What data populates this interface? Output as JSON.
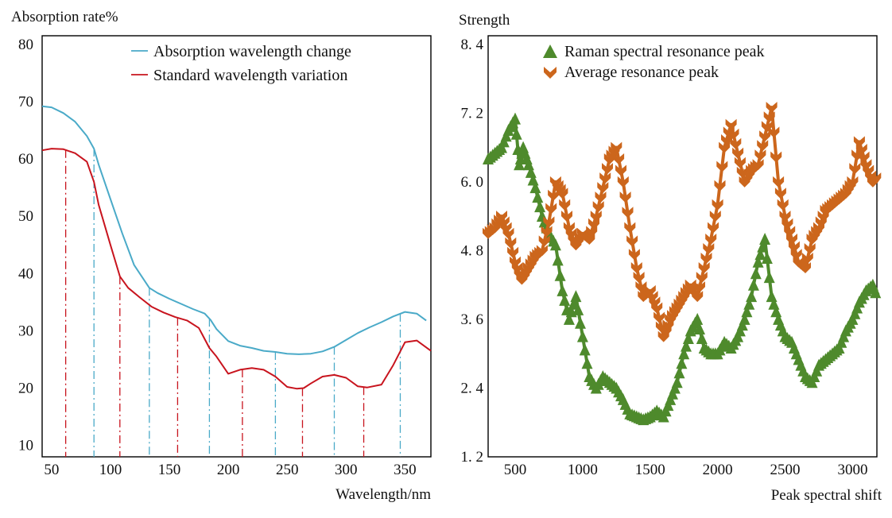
{
  "chart_data": [
    {
      "type": "line",
      "ylabel": "Absorption rate%",
      "xlabel": "Wavelength/nm",
      "xlim": [
        42,
        372
      ],
      "ylim": [
        8,
        81.5
      ],
      "xticks": [
        50,
        100,
        150,
        200,
        250,
        300,
        350
      ],
      "yticks": [
        10,
        20,
        30,
        40,
        50,
        60,
        70,
        80
      ],
      "grid": false,
      "legend_position": "top-right",
      "colors": {
        "absorption": "#4aaac8",
        "standard": "#c8141e",
        "frame": "#000000"
      },
      "series": [
        {
          "name": "Absorption wavelength change",
          "x": [
            42,
            50,
            60,
            70,
            80,
            86,
            90,
            100,
            110,
            120,
            133,
            140,
            150,
            160,
            170,
            180,
            185,
            190,
            200,
            210,
            220,
            230,
            240,
            250,
            260,
            270,
            280,
            290,
            300,
            310,
            320,
            330,
            340,
            350,
            360,
            368
          ],
          "y": [
            69.2,
            69.0,
            68.0,
            66.5,
            64.0,
            61.8,
            59.0,
            53.0,
            47.0,
            41.5,
            37.5,
            36.6,
            35.6,
            34.7,
            33.8,
            33.0,
            31.9,
            30.3,
            28.2,
            27.4,
            27.0,
            26.5,
            26.3,
            26.0,
            25.9,
            26.0,
            26.4,
            27.2,
            28.4,
            29.6,
            30.6,
            31.5,
            32.5,
            33.3,
            33.0,
            31.8
          ]
        },
        {
          "name": "Standard wavelength variation",
          "x": [
            42,
            50,
            60,
            70,
            80,
            86,
            90,
            100,
            108,
            115,
            125,
            135,
            145,
            155,
            165,
            175,
            184,
            190,
            200,
            210,
            220,
            230,
            240,
            250,
            258,
            264,
            270,
            280,
            290,
            300,
            310,
            318,
            330,
            340,
            350,
            360,
            372
          ],
          "y": [
            61.5,
            61.8,
            61.7,
            61.0,
            59.5,
            56.0,
            52.0,
            45.0,
            39.5,
            37.5,
            35.8,
            34.2,
            33.2,
            32.4,
            31.8,
            30.5,
            27.0,
            25.5,
            22.5,
            23.2,
            23.5,
            23.2,
            22.0,
            20.2,
            19.9,
            20.0,
            20.8,
            22.0,
            22.3,
            21.8,
            20.3,
            20.1,
            20.6,
            24.0,
            28.0,
            28.3,
            26.5
          ]
        }
      ],
      "dropline_x_blue": [
        86,
        133,
        184,
        240,
        290,
        346
      ],
      "dropline_x_red": [
        62,
        108,
        157,
        212,
        263,
        315
      ]
    },
    {
      "type": "line",
      "ylabel": "Strength",
      "xlabel": "Peak spectral shift",
      "xlim": [
        300,
        3180
      ],
      "ylim": [
        1.2,
        8.55
      ],
      "xticks": [
        500,
        1000,
        1500,
        2000,
        2500,
        3000
      ],
      "ytick_labels": [
        "1. 2",
        "2. 4",
        "3. 6",
        "4. 8",
        "6. 0",
        "7. 2",
        "8. 4"
      ],
      "ytick_values": [
        1.2,
        2.4,
        3.6,
        4.8,
        6.0,
        7.2,
        8.4
      ],
      "grid": false,
      "legend_position": "top-center",
      "colors": {
        "raman": "#4e8a2c",
        "average": "#cc661c",
        "frame": "#000000"
      },
      "series": [
        {
          "name": "Raman spectral resonance peak",
          "marker": "triangle",
          "x": [
            300,
            350,
            400,
            450,
            500,
            530,
            560,
            600,
            650,
            700,
            750,
            800,
            850,
            900,
            950,
            1000,
            1050,
            1100,
            1150,
            1200,
            1250,
            1300,
            1350,
            1400,
            1450,
            1500,
            1550,
            1600,
            1650,
            1700,
            1750,
            1800,
            1850,
            1900,
            1950,
            2000,
            2050,
            2100,
            2150,
            2200,
            2250,
            2300,
            2350,
            2400,
            2450,
            2500,
            2550,
            2600,
            2650,
            2700,
            2750,
            2800,
            2850,
            2900,
            2950,
            3000,
            3050,
            3100,
            3150,
            3180
          ],
          "y": [
            6.4,
            6.5,
            6.6,
            6.9,
            7.1,
            6.3,
            6.6,
            6.3,
            5.9,
            5.4,
            5.1,
            4.9,
            4.1,
            3.6,
            4.0,
            3.3,
            2.6,
            2.4,
            2.6,
            2.5,
            2.4,
            2.2,
            1.95,
            1.9,
            1.85,
            1.9,
            2.0,
            1.9,
            2.2,
            2.5,
            3.0,
            3.4,
            3.6,
            3.1,
            3.0,
            3.0,
            3.2,
            3.1,
            3.3,
            3.6,
            4.0,
            4.6,
            5.0,
            4.0,
            3.6,
            3.3,
            3.2,
            2.9,
            2.6,
            2.5,
            2.8,
            2.9,
            3.0,
            3.1,
            3.4,
            3.6,
            3.9,
            4.1,
            4.2,
            4.0
          ]
        },
        {
          "name": "Average resonance peak",
          "marker": "chevron",
          "x": [
            300,
            350,
            400,
            450,
            500,
            550,
            600,
            650,
            700,
            750,
            800,
            850,
            900,
            950,
            1000,
            1050,
            1100,
            1150,
            1200,
            1250,
            1300,
            1350,
            1400,
            1450,
            1500,
            1550,
            1600,
            1650,
            1700,
            1750,
            1800,
            1850,
            1900,
            1950,
            2000,
            2050,
            2100,
            2150,
            2200,
            2250,
            2300,
            2350,
            2400,
            2450,
            2500,
            2550,
            2600,
            2650,
            2700,
            2750,
            2800,
            2850,
            2900,
            2950,
            3000,
            3050,
            3100,
            3150,
            3180
          ],
          "y": [
            5.1,
            5.2,
            5.4,
            5.1,
            4.6,
            4.3,
            4.5,
            4.7,
            4.8,
            5.3,
            6.0,
            5.8,
            5.2,
            4.9,
            5.1,
            5.0,
            5.4,
            5.9,
            6.4,
            6.6,
            6.0,
            5.2,
            4.5,
            4.0,
            4.1,
            3.8,
            3.3,
            3.6,
            3.8,
            4.0,
            4.2,
            4.0,
            4.5,
            5.0,
            5.6,
            6.6,
            7.0,
            6.5,
            6.0,
            6.2,
            6.3,
            6.8,
            7.3,
            6.0,
            5.4,
            5.0,
            4.6,
            4.5,
            5.0,
            5.2,
            5.5,
            5.6,
            5.7,
            5.8,
            6.0,
            6.7,
            6.3,
            6.0,
            6.1
          ]
        }
      ]
    }
  ]
}
